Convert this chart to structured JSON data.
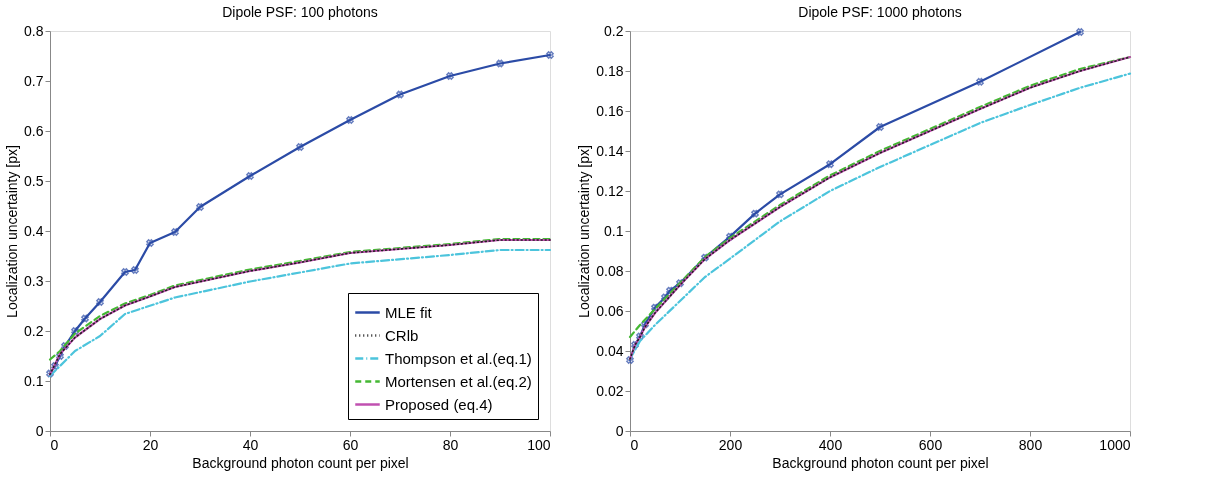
{
  "chart_data": [
    {
      "type": "line",
      "title": "Dipole PSF: 100 photons",
      "xlabel": "Background photon count per pixel",
      "ylabel": "Localization uncertainty [px]",
      "xlim": [
        0,
        100
      ],
      "xticks": [
        0,
        20,
        40,
        60,
        80,
        100
      ],
      "ylim": [
        0,
        0.8
      ],
      "yticks": [
        0,
        0.1,
        0.2,
        0.3,
        0.4,
        0.5,
        0.6,
        0.7,
        0.8
      ],
      "grid": false,
      "legend": "bottom right",
      "series": [
        {
          "name": "MLE fit",
          "color": "#2b4ba6",
          "line_style": "solid",
          "marker": "cross",
          "x": [
            0,
            1,
            2,
            3,
            5,
            7,
            10,
            15,
            17,
            20,
            25,
            30,
            40,
            50,
            60,
            70,
            80,
            90,
            100
          ],
          "values": [
            0.115,
            0.13,
            0.15,
            0.17,
            0.2,
            0.225,
            0.258,
            0.318,
            0.322,
            0.376,
            0.398,
            0.448,
            0.51,
            0.568,
            0.622,
            0.673,
            0.71,
            0.735,
            0.752
          ]
        },
        {
          "name": "CRlb",
          "color": "#222222",
          "line_style": "dotted",
          "marker": "none",
          "x": [
            0,
            2,
            5,
            10,
            15,
            20,
            25,
            40,
            50,
            60,
            80,
            90,
            100
          ],
          "values": [
            0.113,
            0.154,
            0.187,
            0.224,
            0.251,
            0.269,
            0.288,
            0.32,
            0.337,
            0.356,
            0.372,
            0.382,
            0.382
          ]
        },
        {
          "name": "Thompson et al.(eq.1)",
          "color": "#4cc4dc",
          "line_style": "dashdot",
          "marker": "none",
          "x": [
            0,
            2,
            5,
            10,
            15,
            25,
            40,
            60,
            80,
            90,
            100
          ],
          "values": [
            0.11,
            0.13,
            0.16,
            0.19,
            0.234,
            0.267,
            0.299,
            0.335,
            0.352,
            0.362,
            0.362
          ]
        },
        {
          "name": "Mortensen et al.(eq.2)",
          "color": "#44b833",
          "line_style": "dashed",
          "marker": "none",
          "x": [
            0,
            2,
            5,
            10,
            15,
            20,
            25,
            40,
            50,
            60,
            80,
            90,
            100
          ],
          "values": [
            0.143,
            0.16,
            0.195,
            0.23,
            0.255,
            0.272,
            0.291,
            0.323,
            0.34,
            0.358,
            0.374,
            0.384,
            0.384
          ]
        },
        {
          "name": "Proposed (eq.4)",
          "color": "#c050b0",
          "line_style": "solid",
          "marker": "none",
          "x": [
            0,
            2,
            5,
            10,
            15,
            20,
            25,
            40,
            50,
            60,
            80,
            90,
            100
          ],
          "values": [
            0.113,
            0.154,
            0.187,
            0.224,
            0.251,
            0.269,
            0.288,
            0.32,
            0.337,
            0.356,
            0.372,
            0.382,
            0.382
          ]
        }
      ]
    },
    {
      "type": "line",
      "title": "Dipole PSF: 1000 photons",
      "xlabel": "Background photon count per pixel",
      "ylabel": "Localization uncertainty [px]",
      "xlim": [
        0,
        1000
      ],
      "xticks": [
        0,
        200,
        400,
        600,
        800,
        1000
      ],
      "ylim": [
        0,
        0.2
      ],
      "yticks": [
        0,
        0.02,
        0.04,
        0.06,
        0.08,
        0.1,
        0.12,
        0.14,
        0.16,
        0.18,
        0.2
      ],
      "grid": false,
      "series": [
        {
          "color": "#2b4ba6",
          "line_style": "solid",
          "marker": "cross",
          "x": [
            0,
            10,
            20,
            30,
            50,
            70,
            80,
            100,
            150,
            200,
            250,
            300,
            400,
            500,
            700,
            900
          ],
          "values": [
            0.0355,
            0.0431,
            0.0473,
            0.0533,
            0.0617,
            0.0668,
            0.0702,
            0.0739,
            0.0867,
            0.0972,
            0.1087,
            0.1183,
            0.1334,
            0.152,
            0.1746,
            0.1995
          ]
        },
        {
          "color": "#222222",
          "line_style": "dotted",
          "marker": "none",
          "x": [
            0,
            10,
            20,
            30,
            50,
            75,
            100,
            150,
            200,
            300,
            400,
            500,
            600,
            700,
            800,
            900,
            1000
          ],
          "values": [
            0.036,
            0.043,
            0.047,
            0.052,
            0.059,
            0.066,
            0.073,
            0.086,
            0.0955,
            0.112,
            0.1268,
            0.139,
            0.15,
            0.161,
            0.1716,
            0.18,
            0.187
          ]
        },
        {
          "color": "#4cc4dc",
          "line_style": "dashdot",
          "marker": "none",
          "x": [
            0,
            20,
            50,
            100,
            150,
            200,
            300,
            400,
            500,
            600,
            700,
            800,
            900,
            1000
          ],
          "values": [
            0.036,
            0.045,
            0.053,
            0.065,
            0.077,
            0.0862,
            0.1048,
            0.12,
            0.132,
            0.143,
            0.154,
            0.163,
            0.1716,
            0.1787
          ]
        },
        {
          "color": "#44b833",
          "line_style": "dashed",
          "marker": "none",
          "x": [
            0,
            10,
            20,
            50,
            100,
            150,
            200,
            300,
            400,
            500,
            600,
            700,
            800,
            900,
            1000
          ],
          "values": [
            0.047,
            0.05,
            0.053,
            0.061,
            0.074,
            0.087,
            0.0965,
            0.113,
            0.1278,
            0.14,
            0.151,
            0.162,
            0.1726,
            0.181,
            0.187
          ]
        },
        {
          "color": "#c050b0",
          "line_style": "solid",
          "marker": "none",
          "x": [
            0,
            10,
            20,
            30,
            50,
            75,
            100,
            150,
            200,
            300,
            400,
            500,
            600,
            700,
            800,
            900,
            1000
          ],
          "values": [
            0.036,
            0.043,
            0.047,
            0.052,
            0.059,
            0.066,
            0.073,
            0.086,
            0.0955,
            0.112,
            0.1268,
            0.139,
            0.15,
            0.161,
            0.1716,
            0.18,
            0.187
          ]
        }
      ]
    }
  ]
}
